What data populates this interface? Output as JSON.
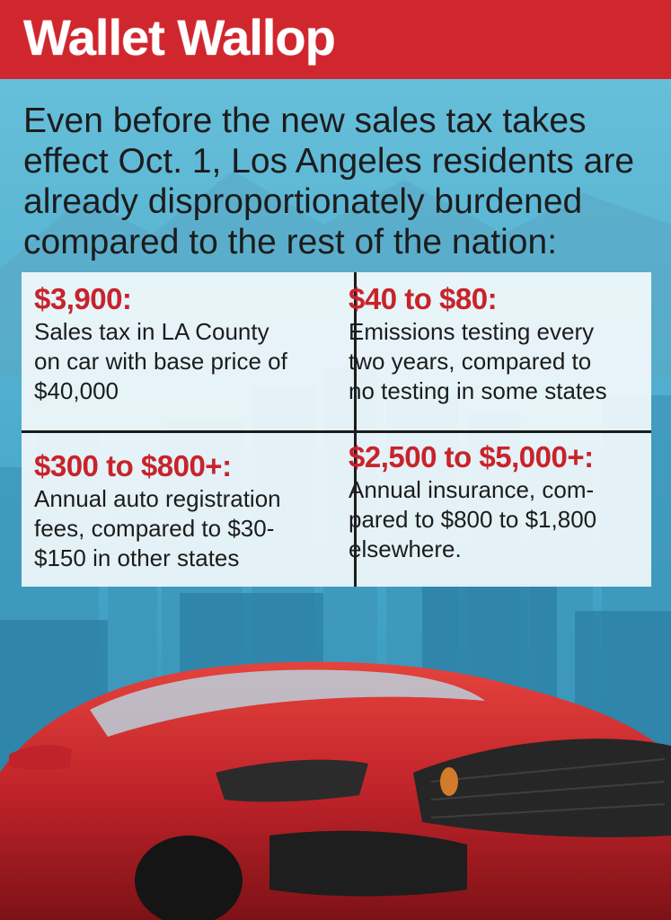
{
  "header": {
    "title": "Wallet Wallop"
  },
  "intro": "Even before the new sales tax takes effect Oct. 1, Los Angeles residents are already disproportionately burdened compared to the rest of the nation:",
  "facts": [
    {
      "value": "$3,900:",
      "lines": [
        "Sales tax in LA County",
        "on car with base price of",
        "$40,000"
      ]
    },
    {
      "value": "$40 to $80:",
      "lines": [
        "Emissions testing every",
        "two years, compared to",
        "no testing in some states"
      ]
    },
    {
      "value": "$300 to $800+:",
      "lines": [
        "Annual auto registration",
        "fees, compared to $30-",
        "$150 in other states"
      ]
    },
    {
      "value": "$2,500 to $5,000+:",
      "lines": [
        "Annual insurance, com-",
        "pared to $800 to $1,800",
        "elsewhere."
      ]
    }
  ],
  "colors": {
    "header_red": "#d0262e",
    "value_red": "#c8232b",
    "sky_blue": "#4fb3d4",
    "car_red": "#c0232a"
  }
}
